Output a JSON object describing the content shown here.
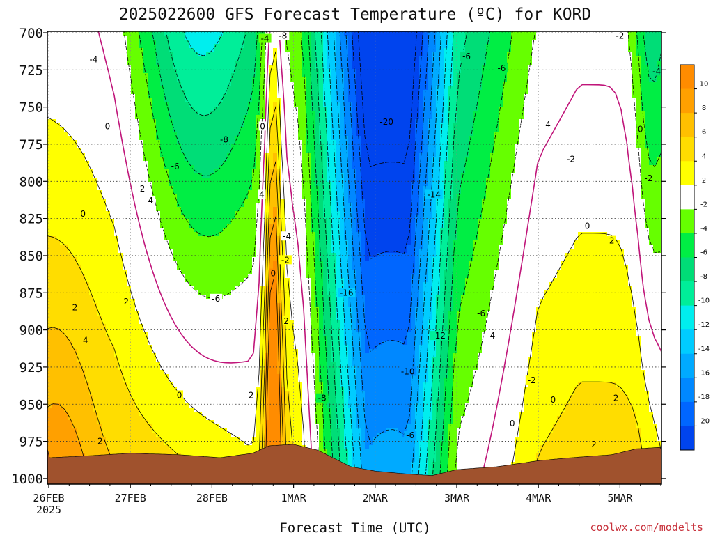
{
  "chart_data": {
    "type": "heatmap",
    "title": "2025022600 GFS Forecast Temperature (ºC) for KORD",
    "xlabel": "Forecast Time (UTC)",
    "ylabel": "",
    "credit": "coolwx.com/modelts",
    "x_ticks": [
      {
        "label": "26FEB",
        "sub": "2025",
        "day": 0
      },
      {
        "label": "27FEB",
        "sub": "",
        "day": 1
      },
      {
        "label": "28FEB",
        "sub": "",
        "day": 2
      },
      {
        "label": "1MAR",
        "sub": "",
        "day": 3
      },
      {
        "label": "2MAR",
        "sub": "",
        "day": 4
      },
      {
        "label": "3MAR",
        "sub": "",
        "day": 5
      },
      {
        "label": "4MAR",
        "sub": "",
        "day": 6
      },
      {
        "label": "5MAR",
        "sub": "",
        "day": 7
      }
    ],
    "xlim_days": [
      0,
      7.5
    ],
    "y_ticks": [
      "700",
      "725",
      "750",
      "775",
      "800",
      "825",
      "850",
      "875",
      "900",
      "925",
      "950",
      "975",
      "1000"
    ],
    "ylim_hpa": [
      700,
      1000
    ],
    "y_axis": "pressure (hPa), decreasing upward",
    "colorbar": {
      "levels": [
        10,
        8,
        6,
        4,
        2,
        -2,
        -4,
        -6,
        -8,
        -10,
        -12,
        -14,
        -16,
        -18,
        -20
      ],
      "colors": [
        "#ff8c00",
        "#ffa000",
        "#ffc000",
        "#ffdd00",
        "#ffff00",
        "#ffffff",
        "#66ff00",
        "#00ee44",
        "#00dd77",
        "#00ee99",
        "#00eeee",
        "#00ccff",
        "#00aaff",
        "#0088ff",
        "#0066ff",
        "#0044ee"
      ]
    },
    "terrain_color": "#a0522d",
    "zero_line_color": "#c0157a",
    "contour_labels": [
      {
        "t": "-4",
        "day": 0.55,
        "p": 718
      },
      {
        "t": "0",
        "day": 0.72,
        "p": 763
      },
      {
        "t": "0",
        "day": 0.42,
        "p": 822
      },
      {
        "t": "-2",
        "day": 1.13,
        "p": 805
      },
      {
        "t": "-4",
        "day": 1.23,
        "p": 813
      },
      {
        "t": "-6",
        "day": 1.55,
        "p": 790
      },
      {
        "t": "-8",
        "day": 2.15,
        "p": 772
      },
      {
        "t": "-6",
        "day": 2.05,
        "p": 879
      },
      {
        "t": "2",
        "day": 0.32,
        "p": 885
      },
      {
        "t": "2",
        "day": 0.95,
        "p": 881
      },
      {
        "t": "4",
        "day": 0.45,
        "p": 907
      },
      {
        "t": "0",
        "day": 1.6,
        "p": 944
      },
      {
        "t": "2",
        "day": 0.63,
        "p": 975
      },
      {
        "t": "-4",
        "day": 2.65,
        "p": 704
      },
      {
        "t": "-8",
        "day": 2.87,
        "p": 702
      },
      {
        "t": "0",
        "day": 2.62,
        "p": 763
      },
      {
        "t": "4",
        "day": 2.61,
        "p": 809
      },
      {
        "t": "-4",
        "day": 2.92,
        "p": 837
      },
      {
        "t": "-2",
        "day": 2.9,
        "p": 853
      },
      {
        "t": "0",
        "day": 2.75,
        "p": 862
      },
      {
        "t": "2",
        "day": 2.91,
        "p": 894
      },
      {
        "t": "2",
        "day": 2.48,
        "p": 944
      },
      {
        "t": "-8",
        "day": 3.35,
        "p": 946
      },
      {
        "t": "-16",
        "day": 3.65,
        "p": 875
      },
      {
        "t": "-20",
        "day": 4.14,
        "p": 760
      },
      {
        "t": "-14",
        "day": 4.72,
        "p": 809
      },
      {
        "t": "-12",
        "day": 4.78,
        "p": 904
      },
      {
        "t": "-10",
        "day": 4.4,
        "p": 928
      },
      {
        "t": "-6",
        "day": 4.43,
        "p": 971
      },
      {
        "t": "-6",
        "day": 5.12,
        "p": 716
      },
      {
        "t": "-6",
        "day": 5.55,
        "p": 724
      },
      {
        "t": "-4",
        "day": 6.1,
        "p": 762
      },
      {
        "t": "-6",
        "day": 5.3,
        "p": 889
      },
      {
        "t": "-4",
        "day": 5.42,
        "p": 904
      },
      {
        "t": "-2",
        "day": 6.4,
        "p": 785
      },
      {
        "t": "0",
        "day": 6.6,
        "p": 830
      },
      {
        "t": "-2",
        "day": 5.92,
        "p": 934
      },
      {
        "t": "0",
        "day": 6.18,
        "p": 947
      },
      {
        "t": "0",
        "day": 5.68,
        "p": 963
      },
      {
        "t": "2",
        "day": 6.9,
        "p": 840
      },
      {
        "t": "2",
        "day": 6.95,
        "p": 946
      },
      {
        "t": "2",
        "day": 6.68,
        "p": 977
      },
      {
        "t": "-2",
        "day": 7.0,
        "p": 702
      },
      {
        "t": "-4",
        "day": 7.45,
        "p": 726
      },
      {
        "t": "0",
        "day": 7.25,
        "p": 765
      },
      {
        "t": "-2",
        "day": 7.35,
        "p": 798
      }
    ]
  }
}
